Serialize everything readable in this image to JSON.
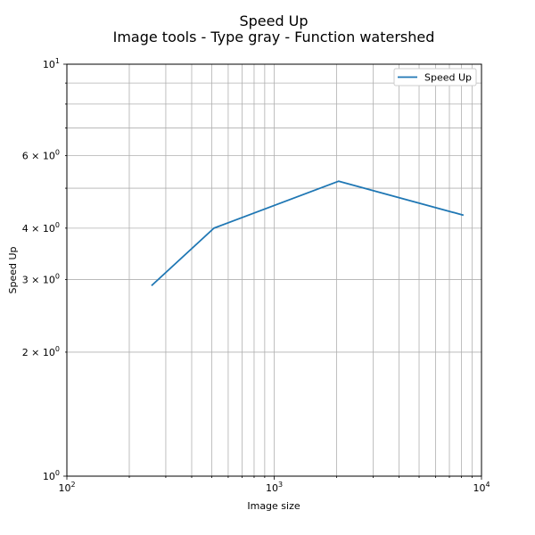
{
  "chart_data": {
    "type": "line",
    "title": "Speed Up",
    "subtitle": "Image tools - Type gray - Function watershed",
    "xlabel": "Image size",
    "ylabel": "Speed Up",
    "xscale": "log",
    "yscale": "log",
    "xlim": [
      100,
      10000
    ],
    "ylim": [
      1,
      10
    ],
    "grid": "both major and minor",
    "legend_position": "top-right",
    "series": [
      {
        "name": "Speed Up",
        "color": "#1f77b4",
        "x": [
          256,
          512,
          2048,
          8192
        ],
        "y": [
          2.9,
          4.0,
          5.2,
          4.3
        ]
      }
    ],
    "x_ticks": [
      {
        "value": 100,
        "base": "10",
        "exp": "2"
      },
      {
        "value": 1000,
        "base": "10",
        "exp": "3"
      },
      {
        "value": 10000,
        "base": "10",
        "exp": "4"
      }
    ],
    "y_ticks": [
      {
        "value": 1,
        "base": "10",
        "exp": "0",
        "mult": ""
      },
      {
        "value": 2,
        "base": "10",
        "exp": "0",
        "mult": "2 × "
      },
      {
        "value": 3,
        "base": "10",
        "exp": "0",
        "mult": "3 × "
      },
      {
        "value": 4,
        "base": "10",
        "exp": "0",
        "mult": "4 × "
      },
      {
        "value": 6,
        "base": "10",
        "exp": "0",
        "mult": "6 × "
      },
      {
        "value": 10,
        "base": "10",
        "exp": "1",
        "mult": ""
      }
    ]
  }
}
